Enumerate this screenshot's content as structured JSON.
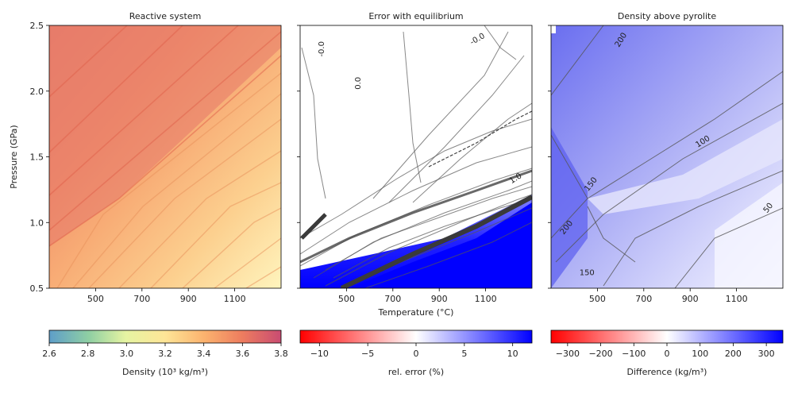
{
  "chart_data": [
    {
      "type": "heatmap",
      "title": "Reactive system",
      "xlabel": "",
      "ylabel": "Pressure (GPa)",
      "xlim": [
        300,
        1300
      ],
      "ylim": [
        0.5,
        2.5
      ],
      "xticks": [
        "500",
        "700",
        "900",
        "1100"
      ],
      "xtick_values": [
        500,
        700,
        900,
        1100
      ],
      "yticks": [
        "0.5",
        "1.0",
        "1.5",
        "2.0",
        "2.5"
      ],
      "ytick_values": [
        0.5,
        1.0,
        1.5,
        2.0,
        2.5
      ],
      "colorbar": {
        "label": "Density (10³ kg/m³)",
        "range": [
          2.6,
          3.8
        ],
        "ticks": [
          "2.6",
          "2.8",
          "3.0",
          "3.2",
          "3.4",
          "3.6",
          "3.8"
        ],
        "tick_values": [
          2.6,
          2.8,
          3.0,
          3.2,
          3.4,
          3.6,
          3.8
        ],
        "colors": [
          "#5e9ec9",
          "#8fcfa3",
          "#e6f4a2",
          "#fee597",
          "#fbb26e",
          "#ee7d5f",
          "#c94c72"
        ]
      },
      "contour_labels": []
    },
    {
      "type": "heatmap",
      "title": "Error with equilibrium",
      "xlabel": "Temperature (°C)",
      "ylabel": "",
      "xlim": [
        300,
        1300
      ],
      "ylim": [
        0.5,
        2.5
      ],
      "xticks": [
        "500",
        "700",
        "900",
        "1100"
      ],
      "xtick_values": [
        500,
        700,
        900,
        1100
      ],
      "colorbar": {
        "label": "rel. error (%)",
        "range": [
          -12,
          12
        ],
        "ticks": [
          "−10",
          "−5",
          "0",
          "5",
          "10"
        ],
        "tick_values": [
          -10,
          -5,
          0,
          5,
          10
        ],
        "colors": [
          "#ff0000",
          "#ffffff",
          "#0000ff"
        ]
      },
      "contour_labels": [
        {
          "text": "-0.0",
          "x": 402,
          "y": 2.32,
          "rotation": -90
        },
        {
          "text": "0.0",
          "x": 560,
          "y": 2.06,
          "rotation": -90
        },
        {
          "text": "-0.0",
          "x": 1070,
          "y": 2.38,
          "rotation": -30
        },
        {
          "text": "1.0",
          "x": 1235,
          "y": 1.32,
          "rotation": -32
        }
      ]
    },
    {
      "type": "heatmap",
      "title": "Density above pyrolite",
      "xlabel": "",
      "ylabel": "",
      "xlim": [
        300,
        1300
      ],
      "ylim": [
        0.5,
        2.5
      ],
      "xticks": [
        "500",
        "700",
        "900",
        "1100"
      ],
      "xtick_values": [
        500,
        700,
        900,
        1100
      ],
      "colorbar": {
        "label": "Difference (kg/m³)",
        "range": [
          -350,
          350
        ],
        "ticks": [
          "−300",
          "−200",
          "−100",
          "0",
          "100",
          "200",
          "300"
        ],
        "tick_values": [
          -300,
          -200,
          -100,
          0,
          100,
          200,
          300
        ],
        "colors": [
          "#ff0000",
          "#ffffff",
          "#0000ff"
        ]
      },
      "contour_labels": [
        {
          "text": "200",
          "x": 610,
          "y": 2.38,
          "rotation": -58
        },
        {
          "text": "100",
          "x": 960,
          "y": 1.6,
          "rotation": -32
        },
        {
          "text": "150",
          "x": 480,
          "y": 1.28,
          "rotation": -52
        },
        {
          "text": "200",
          "x": 375,
          "y": 0.95,
          "rotation": -52
        },
        {
          "text": "150",
          "x": 455,
          "y": 0.6,
          "rotation": 0
        },
        {
          "text": "50",
          "x": 1245,
          "y": 1.1,
          "rotation": -52
        }
      ]
    }
  ]
}
